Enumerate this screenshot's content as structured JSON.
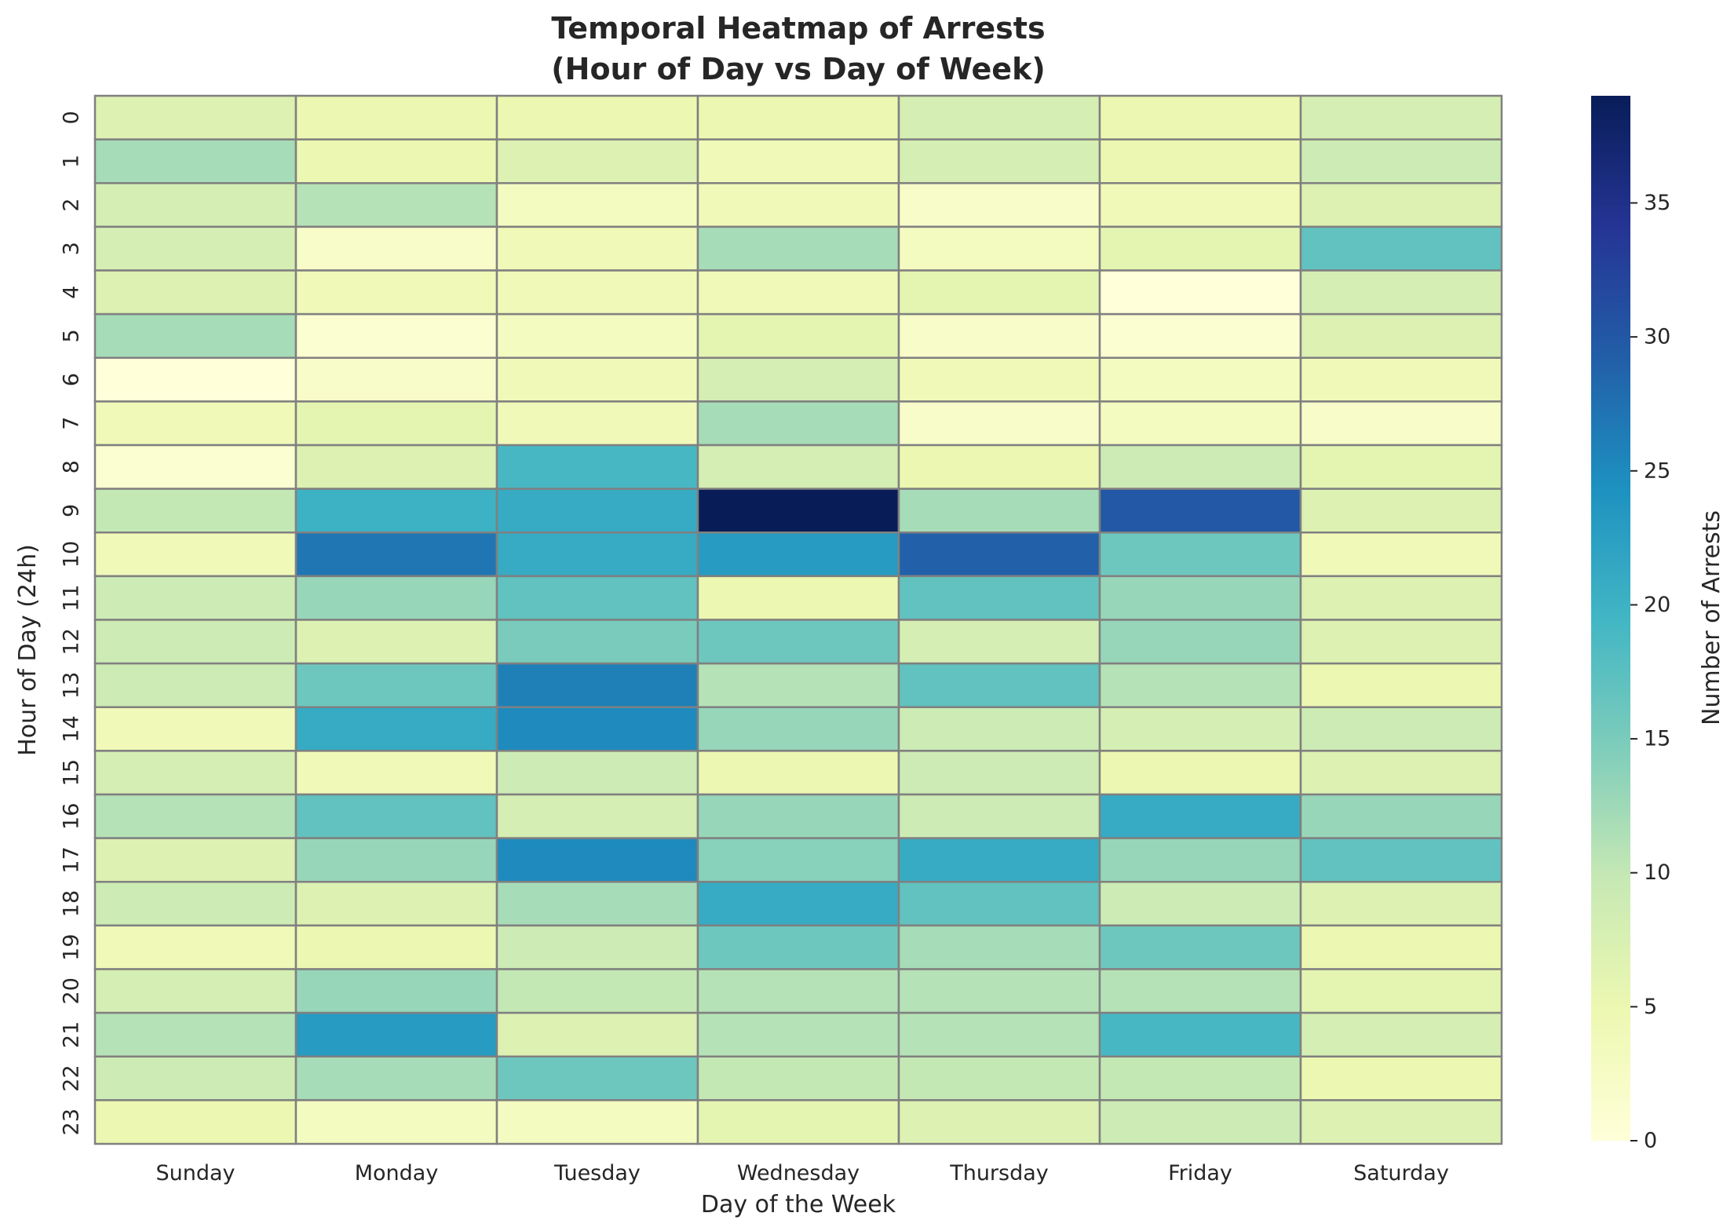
{
  "chart_data": {
    "type": "heatmap",
    "title": [
      "Temporal Heatmap of Arrests",
      "(Hour of Day vs Day of Week)"
    ],
    "xlabel": "Day of the Week",
    "ylabel": "Hour of Day (24h)",
    "x_categories": [
      "Sunday",
      "Monday",
      "Tuesday",
      "Wednesday",
      "Thursday",
      "Friday",
      "Saturday"
    ],
    "y_categories": [
      "0",
      "1",
      "2",
      "3",
      "4",
      "5",
      "6",
      "7",
      "8",
      "9",
      "10",
      "11",
      "12",
      "13",
      "14",
      "15",
      "16",
      "17",
      "18",
      "19",
      "20",
      "21",
      "22",
      "23"
    ],
    "values": [
      [
        7,
        5,
        5,
        5,
        8,
        5,
        8
      ],
      [
        12,
        5,
        7,
        4,
        8,
        5,
        9
      ],
      [
        8,
        11,
        3,
        4,
        2,
        4,
        7
      ],
      [
        8,
        2,
        4,
        12,
        3,
        6,
        17
      ],
      [
        7,
        4,
        4,
        4,
        6,
        0,
        8
      ],
      [
        12,
        1,
        3,
        6,
        2,
        1,
        7
      ],
      [
        0,
        2,
        4,
        8,
        4,
        3,
        4
      ],
      [
        4,
        6,
        4,
        12,
        2,
        3,
        2
      ],
      [
        1,
        7,
        19,
        8,
        5,
        9,
        6
      ],
      [
        10,
        20,
        21,
        39,
        12,
        30,
        7
      ],
      [
        4,
        27,
        21,
        23,
        29,
        16,
        4
      ],
      [
        9,
        13,
        17,
        5,
        17,
        13,
        7
      ],
      [
        9,
        7,
        15,
        16,
        8,
        13,
        7
      ],
      [
        9,
        16,
        26,
        11,
        17,
        11,
        5
      ],
      [
        4,
        21,
        25,
        13,
        9,
        8,
        9
      ],
      [
        8,
        4,
        9,
        5,
        9,
        5,
        7
      ],
      [
        11,
        17,
        8,
        13,
        9,
        21,
        13
      ],
      [
        7,
        13,
        25,
        14,
        21,
        13,
        17
      ],
      [
        9,
        7,
        12,
        21,
        17,
        9,
        7
      ],
      [
        4,
        5,
        9,
        16,
        12,
        16,
        5
      ],
      [
        8,
        13,
        10,
        11,
        11,
        11,
        6
      ],
      [
        11,
        23,
        7,
        11,
        11,
        19,
        8
      ],
      [
        9,
        12,
        16,
        10,
        10,
        10,
        5
      ],
      [
        5,
        3,
        3,
        6,
        7,
        9,
        7
      ]
    ],
    "value_range": [
      0,
      39
    ],
    "colormap": "YlGnBu",
    "colormap_stops": [
      "#ffffd9",
      "#edf8b1",
      "#c7e9b4",
      "#7fcdbb",
      "#41b6c4",
      "#1d91c0",
      "#225ea8",
      "#253494",
      "#081d58"
    ],
    "cell_border_color": "#808080",
    "colorbar": {
      "label": "Number of Arrests",
      "ticks": [
        0,
        5,
        10,
        15,
        20,
        25,
        30,
        35
      ]
    }
  }
}
